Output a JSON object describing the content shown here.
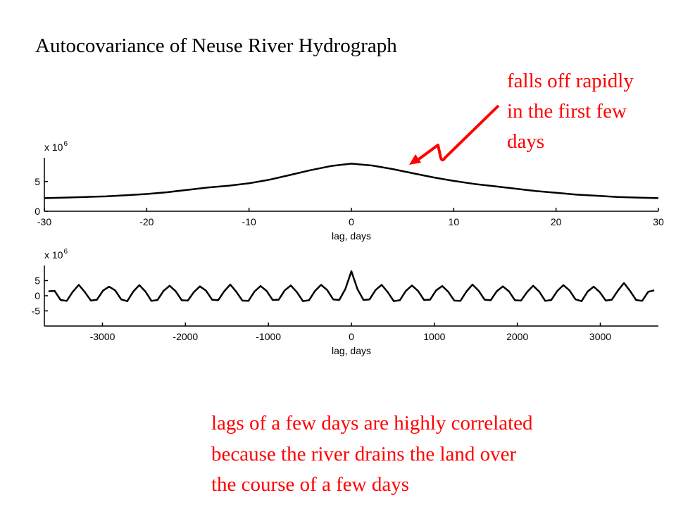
{
  "title": "Autocovariance of Neuse River Hydrograph",
  "annotation_top": [
    "falls off rapidly",
    "in the first few",
    "days"
  ],
  "annotation_bottom": [
    "lags of a few days are highly correlated",
    "because the river drains the land over",
    "the course of a few days"
  ],
  "chart_data": [
    {
      "type": "line",
      "xlabel": "lag, days",
      "y_scale_label": {
        "base": "x 10",
        "exponent": "6"
      },
      "color": "#000000",
      "x": [
        -30,
        -28,
        -26,
        -24,
        -22,
        -20,
        -18,
        -16,
        -14,
        -12,
        -10,
        -8,
        -6,
        -4,
        -2,
        0,
        2,
        4,
        6,
        8,
        10,
        12,
        14,
        16,
        18,
        20,
        22,
        24,
        26,
        28,
        30
      ],
      "values": [
        2.2,
        2.3,
        2.4,
        2.5,
        2.7,
        2.9,
        3.2,
        3.6,
        4.0,
        4.3,
        4.7,
        5.3,
        6.1,
        6.9,
        7.6,
        8.0,
        7.7,
        7.1,
        6.4,
        5.7,
        5.1,
        4.6,
        4.2,
        3.8,
        3.4,
        3.1,
        2.8,
        2.6,
        2.4,
        2.3,
        2.2
      ],
      "xlim": [
        -30,
        30
      ],
      "ylim": [
        0,
        9
      ],
      "xticks": [
        -30,
        -20,
        -10,
        0,
        10,
        20,
        30
      ],
      "yticks": [
        0,
        5
      ]
    },
    {
      "type": "line",
      "xlabel": "lag, days",
      "y_scale_label": {
        "base": "x 10",
        "exponent": "6"
      },
      "color": "#000000",
      "x": [
        -3650,
        -3577,
        -3504,
        -3431,
        -3358,
        -3285,
        -3212,
        -3139,
        -3066,
        -2993,
        -2920,
        -2847,
        -2774,
        -2701,
        -2628,
        -2555,
        -2482,
        -2409,
        -2336,
        -2263,
        -2190,
        -2117,
        -2044,
        -1971,
        -1898,
        -1825,
        -1752,
        -1679,
        -1606,
        -1533,
        -1460,
        -1387,
        -1314,
        -1241,
        -1168,
        -1095,
        -1022,
        -949,
        -876,
        -803,
        -730,
        -657,
        -584,
        -511,
        -438,
        -365,
        -292,
        -219,
        -146,
        -73,
        0,
        73,
        146,
        219,
        292,
        365,
        438,
        511,
        584,
        657,
        730,
        803,
        876,
        949,
        1022,
        1095,
        1168,
        1241,
        1314,
        1387,
        1460,
        1533,
        1606,
        1679,
        1752,
        1825,
        1898,
        1971,
        2044,
        2117,
        2190,
        2263,
        2336,
        2409,
        2482,
        2555,
        2628,
        2701,
        2774,
        2847,
        2920,
        2993,
        3066,
        3139,
        3212,
        3285,
        3358,
        3431,
        3504,
        3577,
        3650
      ],
      "values": [
        1.5,
        1.6,
        -1.4,
        -1.7,
        1.3,
        3.6,
        1.2,
        -1.6,
        -1.3,
        1.7,
        3.0,
        1.8,
        -1.2,
        -1.8,
        1.4,
        3.5,
        1.4,
        -1.7,
        -1.4,
        1.6,
        3.3,
        1.5,
        -1.5,
        -1.6,
        1.2,
        3.1,
        1.7,
        -1.3,
        -1.5,
        1.5,
        3.7,
        1.3,
        -1.6,
        -1.7,
        1.4,
        3.2,
        1.6,
        -1.4,
        -1.3,
        1.8,
        3.4,
        1.2,
        -1.8,
        -1.5,
        1.6,
        3.6,
        1.9,
        -1.2,
        -1.4,
        2.2,
        8.1,
        2.2,
        -1.4,
        -1.2,
        1.9,
        3.6,
        1.2,
        -1.8,
        -1.5,
        1.6,
        3.4,
        1.6,
        -1.4,
        -1.3,
        1.8,
        3.2,
        1.3,
        -1.6,
        -1.7,
        1.4,
        3.7,
        1.7,
        -1.3,
        -1.5,
        1.5,
        3.1,
        1.5,
        -1.5,
        -1.6,
        1.2,
        3.3,
        1.4,
        -1.7,
        -1.4,
        1.6,
        3.5,
        1.8,
        -1.2,
        -1.8,
        1.4,
        3.0,
        1.2,
        -1.6,
        -1.3,
        1.7,
        4.2,
        1.6,
        -1.4,
        -1.7,
        1.3,
        1.8
      ],
      "xlim": [
        -3700,
        3700
      ],
      "ylim": [
        -10,
        10
      ],
      "xticks": [
        -3000,
        -2000,
        -1000,
        0,
        1000,
        2000,
        3000
      ],
      "yticks": [
        -5,
        0,
        5
      ]
    }
  ]
}
